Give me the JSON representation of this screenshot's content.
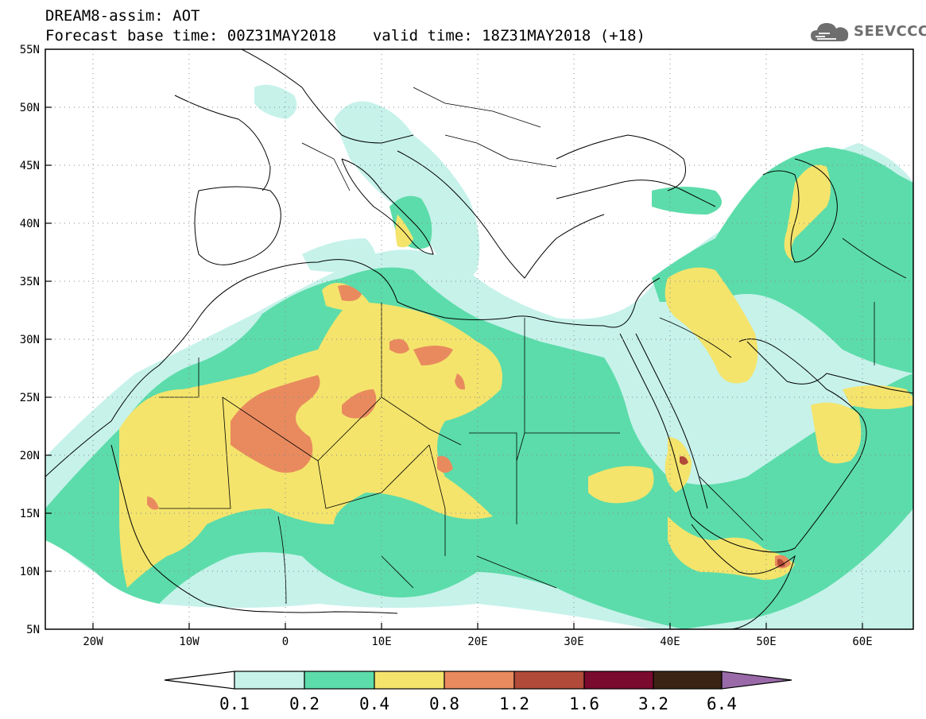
{
  "title_line1": "DREAM8-assim: AOT",
  "title_line2_base": "Forecast base time: 00Z31MAY2018",
  "title_line2_valid": "valid time: 18Z31MAY2018 (+18)",
  "logo_text": "SEEVCCC",
  "map": {
    "lon_range": [
      -25,
      65
    ],
    "lat_range": [
      5,
      55
    ],
    "lon_ticks": [
      "20W",
      "10W",
      "0",
      "10E",
      "20E",
      "30E",
      "40E",
      "50E",
      "60E"
    ],
    "lat_ticks": [
      "5N",
      "10N",
      "15N",
      "20N",
      "25N",
      "30N",
      "35N",
      "40N",
      "45N",
      "50N",
      "55N"
    ],
    "ocean_color": "#ffffff",
    "border_color": "#000000"
  },
  "colorbar": {
    "labels": [
      "0.1",
      "0.2",
      "0.4",
      "0.8",
      "1.2",
      "1.6",
      "3.2",
      "6.4"
    ],
    "colors": [
      "#ffffff",
      "#c6f2ea",
      "#5cdcaa",
      "#f4e46c",
      "#e98a5e",
      "#b24a3a",
      "#7a0a2e",
      "#3c2414",
      "#9a6aa8"
    ]
  }
}
